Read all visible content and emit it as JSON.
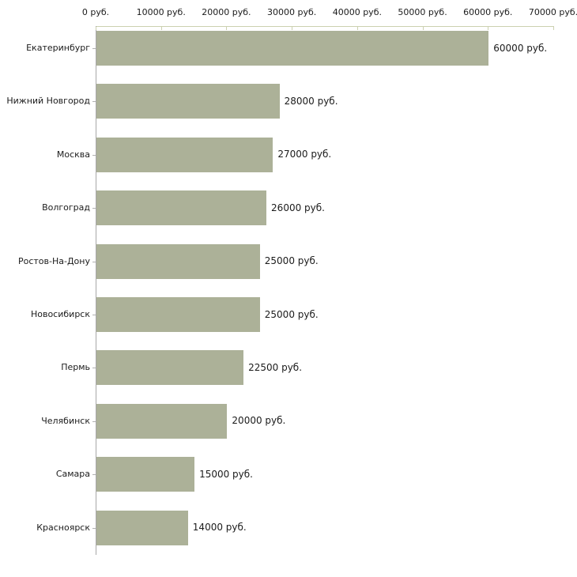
{
  "chart_data": {
    "type": "bar",
    "orientation": "horizontal",
    "title": "",
    "xlabel": "",
    "ylabel": "",
    "xlim": [
      0,
      70000
    ],
    "grid": false,
    "legend": null,
    "x_tick_labels": [
      "0 руб.",
      "10000 руб.",
      "20000 руб.",
      "30000 руб.",
      "40000 руб.",
      "50000 руб.",
      "60000 руб.",
      "70000 руб."
    ],
    "x_tick_values": [
      0,
      10000,
      20000,
      30000,
      40000,
      50000,
      60000,
      70000
    ],
    "categories": [
      "Екатеринбург",
      "Нижний Новгород",
      "Москва",
      "Волгоград",
      "Ростов-На-Дону",
      "Новосибирск",
      "Пермь",
      "Челябинск",
      "Самара",
      "Красноярск"
    ],
    "values": [
      60000,
      28000,
      27000,
      26000,
      25000,
      25000,
      22500,
      20000,
      15000,
      14000
    ],
    "value_labels": [
      "60000 руб.",
      "28000 руб.",
      "27000 руб.",
      "26000 руб.",
      "25000 руб.",
      "25000 руб.",
      "22500 руб.",
      "20000 руб.",
      "15000 руб.",
      "14000 руб."
    ],
    "colors": {
      "bar": "#acb198",
      "top_axis": "#ccd1b0",
      "left_axis": "#a8a8a8",
      "category_tick": "#b0b0b0",
      "text": "#1b1b1b",
      "background": "#ffffff"
    }
  }
}
